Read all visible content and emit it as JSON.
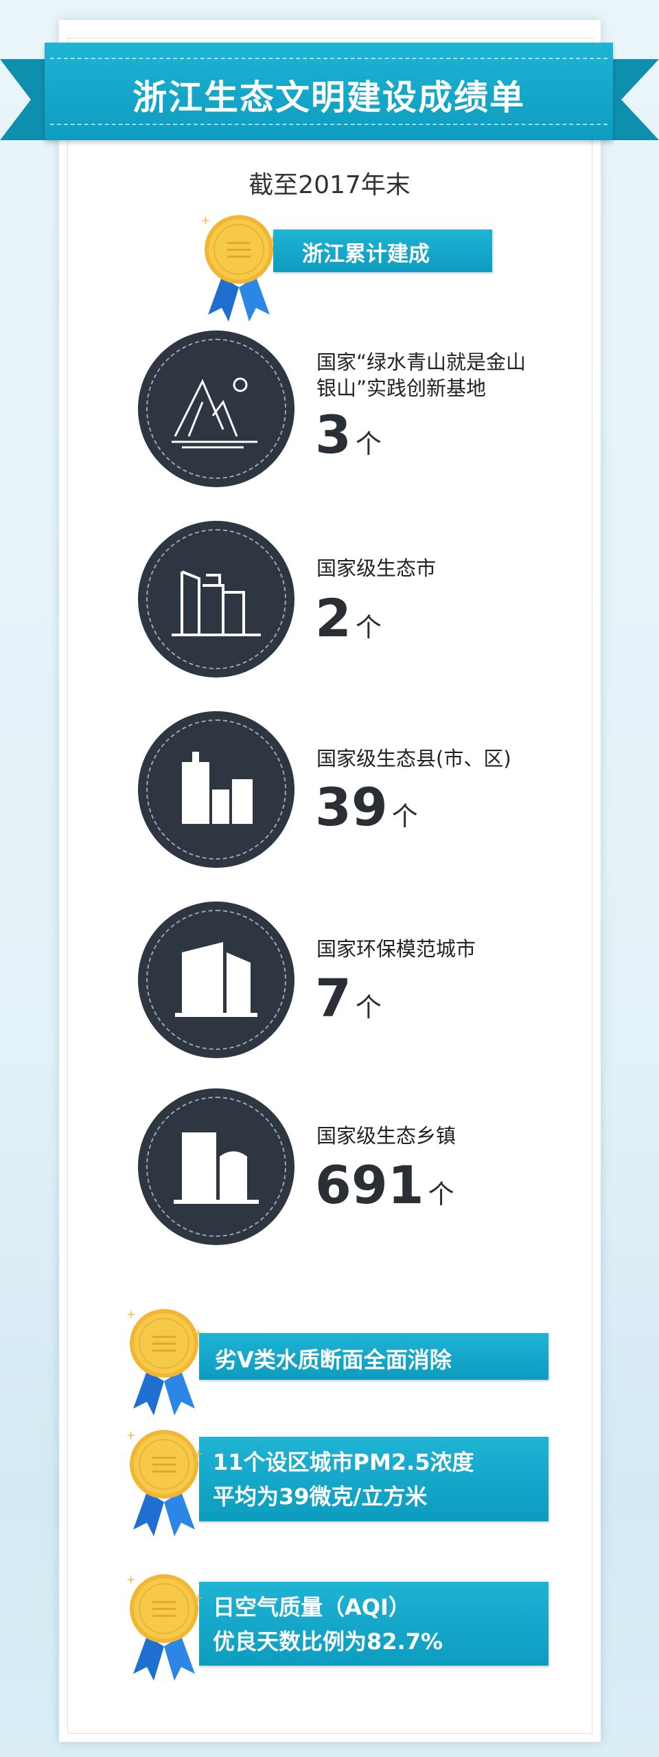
{
  "title": "浙江生态文明建设成绩单",
  "subtitle": "截至2017年末",
  "section_label": "浙江累计建成",
  "items": [
    {
      "label_line1": "国家“绿水青山就是金山",
      "label_line2": "银山”实践创新基地",
      "value": "3",
      "unit": "个",
      "icon": "mountain-icon"
    },
    {
      "label_line1": "国家级生态市",
      "value": "2",
      "unit": "个",
      "icon": "city-buildings-icon"
    },
    {
      "label_line1": "国家级生态县(市、区)",
      "value": "39",
      "unit": "个",
      "icon": "county-buildings-icon"
    },
    {
      "label_line1": "国家环保模范城市",
      "value": "7",
      "unit": "个",
      "icon": "office-tower-icon"
    },
    {
      "label_line1": "国家级生态乡镇",
      "value": "691",
      "unit": "个",
      "icon": "town-buildings-icon"
    }
  ],
  "achievements": [
    {
      "line1": "劣V类水质断面全面消除"
    },
    {
      "line1": "11个设区城市PM2.5浓度",
      "line2": "平均为39微克/立方米"
    },
    {
      "line1": "日空气质量（AQI）",
      "line2": "优良天数比例为82.7%"
    }
  ],
  "colors": {
    "ribbon": "#13a6c8",
    "medal_gold": "#f7c948",
    "medal_ribbon": "#1e6fd0",
    "circle": "#2e3641"
  }
}
